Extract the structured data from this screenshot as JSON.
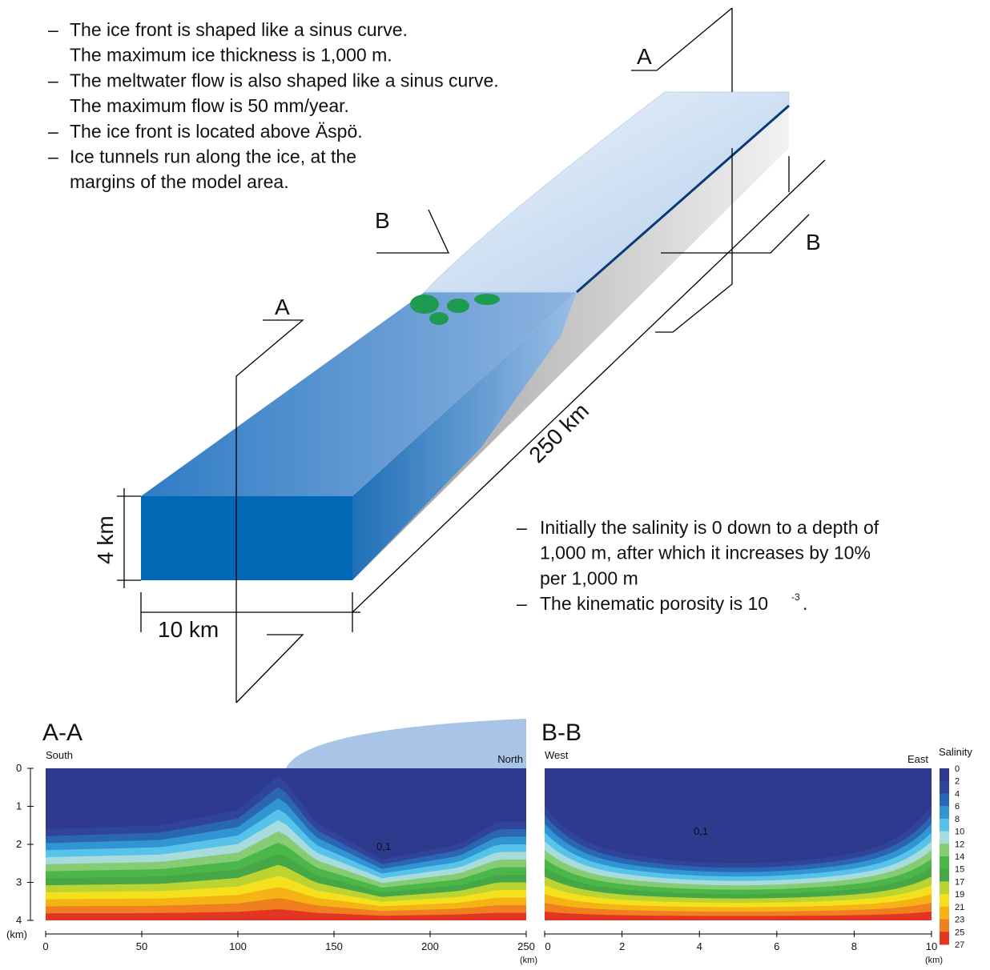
{
  "notes_top": [
    [
      "The ice front is shaped like a sinus curve.",
      "The maximum ice thickness is 1,000 m."
    ],
    [
      "The meltwater flow is also shaped like a sinus curve.",
      "The maximum flow is 50 mm/year."
    ],
    [
      "The ice front is located above Äspö."
    ],
    [
      "Ice tunnels run along the ice, at the",
      "margins of the model area."
    ]
  ],
  "notes_bottom": {
    "salinity": [
      "Initially the salinity is 0 down to a depth of",
      "1,000 m, after which it increases by 10%",
      "per 1,000 m"
    ],
    "porosity": "The kinematic porosity is 10",
    "porosity_exponent": "-3",
    "porosity_end": "."
  },
  "block": {
    "section_labels": [
      "A",
      "A",
      "B",
      "B"
    ],
    "length": "250 km",
    "width": "10 km",
    "depth": "4 km"
  },
  "sections": [
    {
      "title": "A-A",
      "left": "South",
      "right": "North",
      "contour": "0,1",
      "x_ticks": [
        "0",
        "50",
        "100",
        "150",
        "200",
        "250"
      ],
      "x_unit": "(km)"
    },
    {
      "title": "B-B",
      "left": "West",
      "right": "East",
      "contour": "0,1",
      "x_ticks": [
        "0",
        "2",
        "4",
        "6",
        "8",
        "10"
      ],
      "x_unit": "(km)"
    }
  ],
  "depth_axis": {
    "ticks": [
      "0",
      "1",
      "2",
      "3",
      "4"
    ],
    "unit": "(km)"
  },
  "legend": {
    "title": "Salinity",
    "ticks": [
      "0",
      "2",
      "4",
      "6",
      "8",
      "10",
      "12",
      "14",
      "15",
      "17",
      "19",
      "21",
      "23",
      "25",
      "27"
    ],
    "colors": [
      "#2e3a8e",
      "#30449a",
      "#2a66b3",
      "#3194d3",
      "#58c3ea",
      "#a8dcdc",
      "#86cc74",
      "#4bb748",
      "#45a746",
      "#bcd431",
      "#f4e01c",
      "#f6b316",
      "#ef7f1f",
      "#e23524"
    ]
  }
}
